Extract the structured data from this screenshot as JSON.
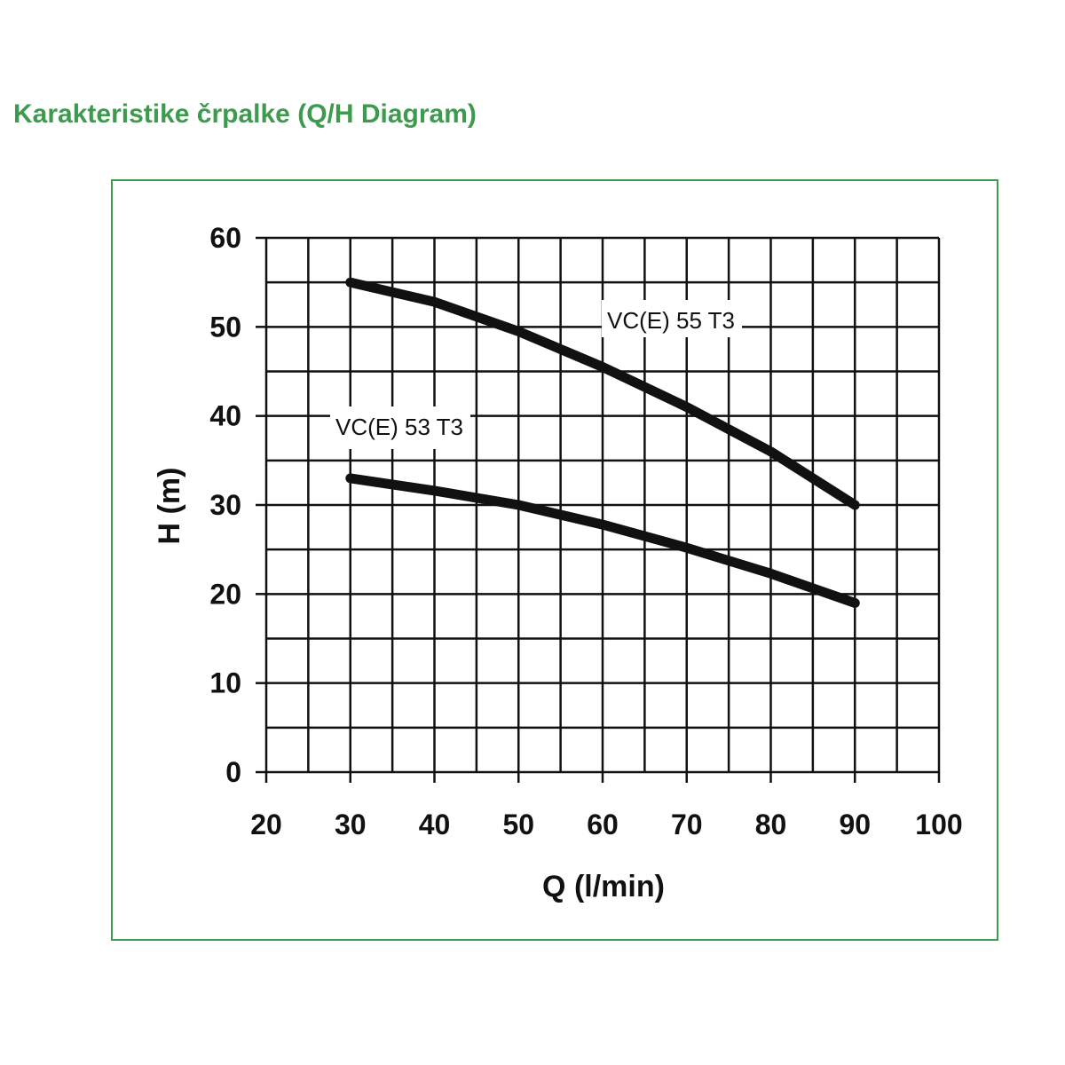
{
  "page": {
    "title": "Karakteristike črpalke (Q/H Diagram)"
  },
  "chart_data": {
    "type": "line",
    "title": "",
    "xlabel": "Q (l/min)",
    "ylabel": "H (m)",
    "xlim": [
      20,
      100
    ],
    "ylim": [
      0,
      60
    ],
    "x_ticks": [
      20,
      30,
      40,
      50,
      60,
      70,
      80,
      90,
      100
    ],
    "y_ticks": [
      0,
      10,
      20,
      30,
      40,
      50,
      60
    ],
    "grid": true,
    "legend": "none",
    "series": [
      {
        "name": "VC(E) 55 T3",
        "x": [
          30,
          40,
          50,
          60,
          70,
          80,
          90
        ],
        "y": [
          55,
          52.8,
          49.5,
          45.5,
          41,
          36,
          30
        ]
      },
      {
        "name": "VC(E) 53 T3",
        "x": [
          30,
          40,
          50,
          60,
          70,
          80,
          90
        ],
        "y": [
          33,
          31.6,
          30,
          27.8,
          25.2,
          22.3,
          19
        ]
      }
    ],
    "colors": {
      "frame": "#3d9a4f",
      "line": "#111111",
      "grid": "#111111"
    }
  }
}
